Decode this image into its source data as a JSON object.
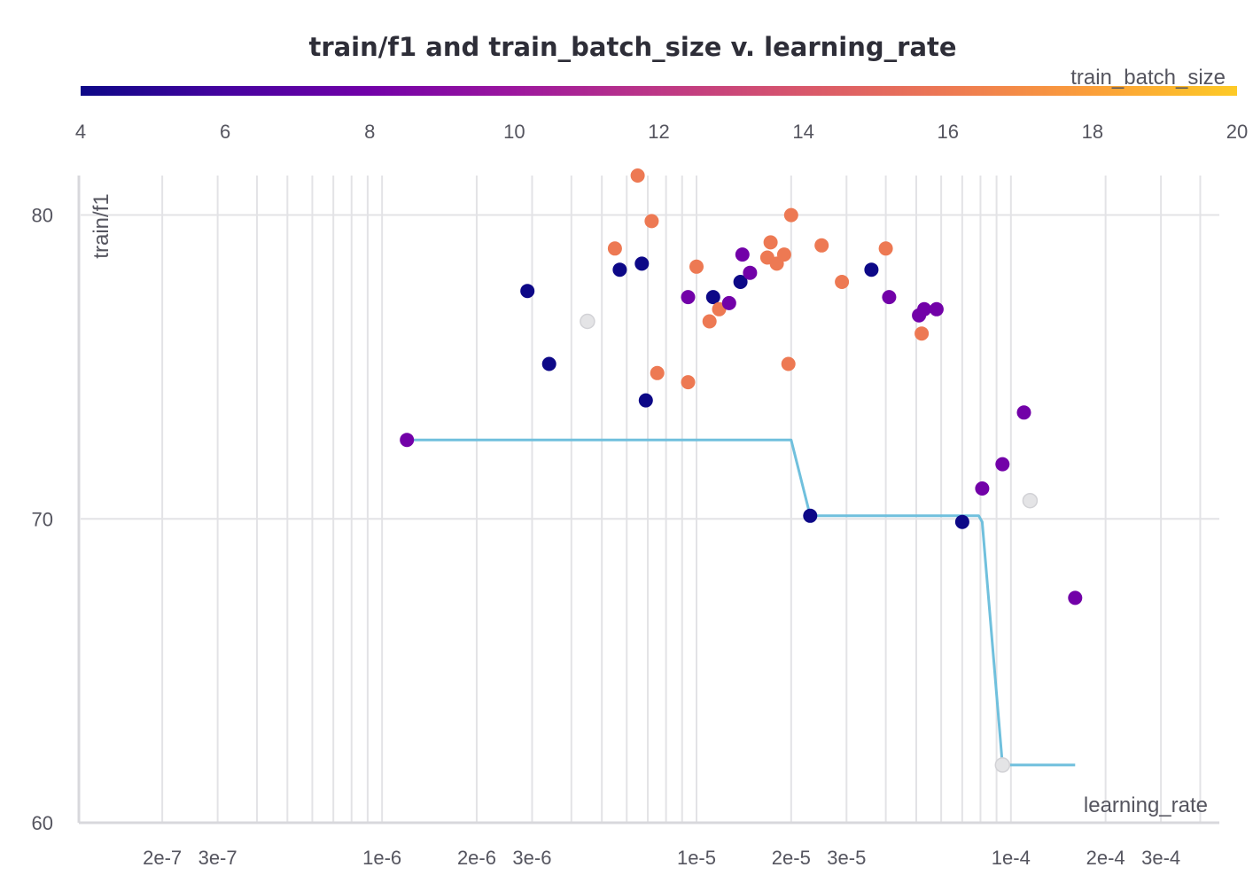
{
  "chart_data": {
    "type": "scatter",
    "title": "train/f1 and train_batch_size v. learning_rate",
    "xlabel": "learning_rate",
    "ylabel": "train/f1",
    "x_scale": "log",
    "xlim": [
      1.1e-07,
      0.00046
    ],
    "ylim": [
      60,
      81.3
    ],
    "x_ticks": [
      {
        "value": 2e-07,
        "label": "2e-7"
      },
      {
        "value": 3e-07,
        "label": "3e-7"
      },
      {
        "value": 1e-06,
        "label": "1e-6"
      },
      {
        "value": 2e-06,
        "label": "2e-6"
      },
      {
        "value": 3e-06,
        "label": "3e-6"
      },
      {
        "value": 1e-05,
        "label": "1e-5"
      },
      {
        "value": 2e-05,
        "label": "2e-5"
      },
      {
        "value": 3e-05,
        "label": "3e-5"
      },
      {
        "value": 0.0001,
        "label": "1e-4"
      },
      {
        "value": 0.0002,
        "label": "2e-4"
      },
      {
        "value": 0.0003,
        "label": "3e-4"
      }
    ],
    "y_ticks": [
      {
        "value": 80,
        "label": "80"
      },
      {
        "value": 70,
        "label": "70"
      },
      {
        "value": 60,
        "label": "60"
      }
    ],
    "grid": true,
    "colorbar": {
      "label": "train_batch_size",
      "min": 4,
      "max": 20,
      "ticks": [
        "4",
        "6",
        "8",
        "10",
        "12",
        "14",
        "16",
        "18",
        "20"
      ],
      "stops": [
        "#0d0887",
        "#46039f",
        "#7201a8",
        "#9c179e",
        "#bd3786",
        "#d8576b",
        "#ed7953",
        "#fb9f3a",
        "#fdca26"
      ]
    },
    "points": [
      {
        "x": 1.2e-06,
        "y": 72.6,
        "batch_size": 8
      },
      {
        "x": 2.9e-06,
        "y": 77.5,
        "batch_size": 4
      },
      {
        "x": 3.4e-06,
        "y": 75.1,
        "batch_size": 4
      },
      {
        "x": 4.5e-06,
        "y": 76.5,
        "batch_size": null
      },
      {
        "x": 5.5e-06,
        "y": 78.9,
        "batch_size": 16
      },
      {
        "x": 5.7e-06,
        "y": 78.2,
        "batch_size": 4
      },
      {
        "x": 6.5e-06,
        "y": 81.3,
        "batch_size": 16
      },
      {
        "x": 6.7e-06,
        "y": 78.4,
        "batch_size": 4
      },
      {
        "x": 6.9e-06,
        "y": 73.9,
        "batch_size": 4
      },
      {
        "x": 7.2e-06,
        "y": 79.8,
        "batch_size": 16
      },
      {
        "x": 7.5e-06,
        "y": 74.8,
        "batch_size": 16
      },
      {
        "x": 9.4e-06,
        "y": 77.3,
        "batch_size": 8
      },
      {
        "x": 9.4e-06,
        "y": 74.5,
        "batch_size": 16
      },
      {
        "x": 1e-05,
        "y": 78.3,
        "batch_size": 16
      },
      {
        "x": 1.1e-05,
        "y": 76.5,
        "batch_size": 16
      },
      {
        "x": 1.13e-05,
        "y": 77.3,
        "batch_size": 4
      },
      {
        "x": 1.18e-05,
        "y": 76.9,
        "batch_size": 16
      },
      {
        "x": 1.27e-05,
        "y": 77.1,
        "batch_size": 8
      },
      {
        "x": 1.38e-05,
        "y": 77.8,
        "batch_size": 4
      },
      {
        "x": 1.4e-05,
        "y": 78.7,
        "batch_size": 8
      },
      {
        "x": 1.48e-05,
        "y": 78.1,
        "batch_size": 8
      },
      {
        "x": 1.68e-05,
        "y": 78.6,
        "batch_size": 16
      },
      {
        "x": 1.72e-05,
        "y": 79.1,
        "batch_size": 16
      },
      {
        "x": 1.8e-05,
        "y": 78.4,
        "batch_size": 16
      },
      {
        "x": 1.9e-05,
        "y": 78.7,
        "batch_size": 16
      },
      {
        "x": 1.96e-05,
        "y": 75.1,
        "batch_size": 16
      },
      {
        "x": 2e-05,
        "y": 80.0,
        "batch_size": 16
      },
      {
        "x": 2.3e-05,
        "y": 70.1,
        "batch_size": 4
      },
      {
        "x": 2.5e-05,
        "y": 79.0,
        "batch_size": 16
      },
      {
        "x": 2.9e-05,
        "y": 77.8,
        "batch_size": 16
      },
      {
        "x": 3.6e-05,
        "y": 78.2,
        "batch_size": 4
      },
      {
        "x": 4e-05,
        "y": 78.9,
        "batch_size": 16
      },
      {
        "x": 4.1e-05,
        "y": 77.3,
        "batch_size": 8
      },
      {
        "x": 5.1e-05,
        "y": 76.7,
        "batch_size": 8
      },
      {
        "x": 5.2e-05,
        "y": 76.1,
        "batch_size": 16
      },
      {
        "x": 5.3e-05,
        "y": 76.9,
        "batch_size": 8
      },
      {
        "x": 5.8e-05,
        "y": 76.9,
        "batch_size": 8
      },
      {
        "x": 7e-05,
        "y": 69.9,
        "batch_size": 4
      },
      {
        "x": 8.1e-05,
        "y": 71.0,
        "batch_size": 8
      },
      {
        "x": 9.4e-05,
        "y": 71.8,
        "batch_size": 8
      },
      {
        "x": 9.4e-05,
        "y": 61.9,
        "batch_size": null
      },
      {
        "x": 0.00011,
        "y": 73.5,
        "batch_size": 8
      },
      {
        "x": 0.000115,
        "y": 70.6,
        "batch_size": null
      },
      {
        "x": 0.00016,
        "y": 67.4,
        "batch_size": 8
      }
    ],
    "line": {
      "color": "#70c0dd",
      "points": [
        {
          "x": 1.2e-06,
          "y": 72.6
        },
        {
          "x": 2e-05,
          "y": 72.6
        },
        {
          "x": 2.3e-05,
          "y": 70.1
        },
        {
          "x": 7.9e-05,
          "y": 70.1
        },
        {
          "x": 8.1e-05,
          "y": 69.9
        },
        {
          "x": 9.4e-05,
          "y": 61.9
        },
        {
          "x": 0.00016,
          "y": 61.9
        }
      ]
    },
    "null_color": "#e4e4e6"
  }
}
